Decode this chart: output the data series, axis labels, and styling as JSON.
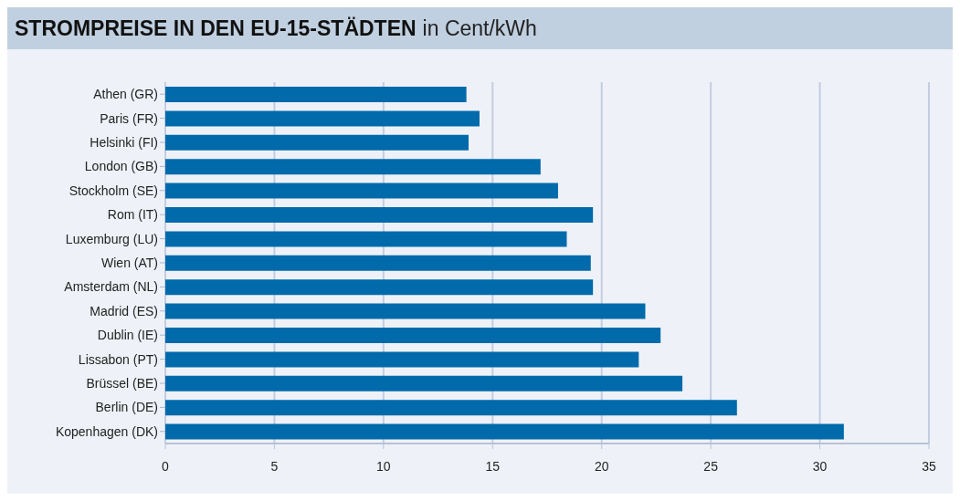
{
  "chart_data": {
    "type": "bar",
    "orientation": "horizontal",
    "title": "STROMPREISE IN DEN EU-15-STÄDTEN",
    "subtitle": "in Cent/kWh",
    "categories": [
      "Athen (GR)",
      "Paris (FR)",
      "Helsinki (FI)",
      "London (GB)",
      "Stockholm (SE)",
      "Rom (IT)",
      "Luxemburg (LU)",
      "Wien (AT)",
      "Amsterdam (NL)",
      "Madrid (ES)",
      "Dublin (IE)",
      "Lissabon (PT)",
      "Brüssel (BE)",
      "Berlin (DE)",
      "Kopenhagen (DK)"
    ],
    "values": [
      13.8,
      14.4,
      13.9,
      17.2,
      18.0,
      19.6,
      18.4,
      19.5,
      19.6,
      22.0,
      22.7,
      21.7,
      23.7,
      26.2,
      31.1
    ],
    "color": "#006aab",
    "xlim": [
      0,
      35
    ],
    "xticks": [
      0,
      5,
      10,
      15,
      20,
      25,
      30,
      35
    ],
    "grid": "x"
  }
}
